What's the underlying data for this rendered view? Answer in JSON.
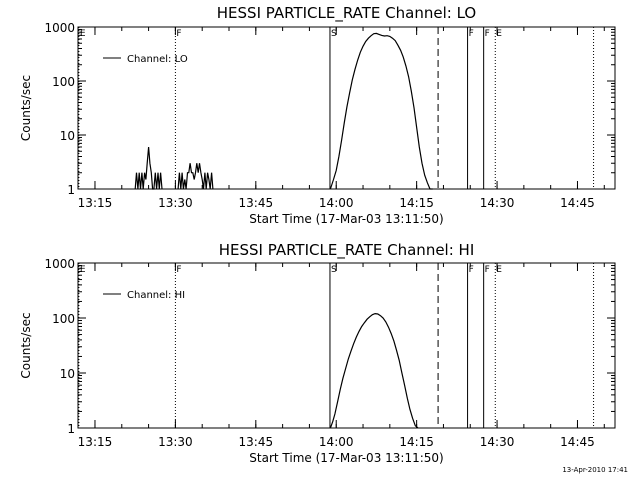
{
  "footer": {
    "timestamp": "13-Apr-2010 17:41"
  },
  "chart_data": [
    {
      "type": "line",
      "title": "HESSI PARTICLE_RATE Channel: LO",
      "xlabel": "Start Time (17-Mar-03 13:11:50)",
      "ylabel": "Counts/sec",
      "y_scale": "log",
      "ylim": [
        1,
        1000
      ],
      "xlim": [
        "13:11:50",
        "14:52:00"
      ],
      "xticks": [
        "13:15",
        "13:30",
        "13:45",
        "14:00",
        "14:15",
        "14:30",
        "14:45"
      ],
      "yticks": [
        "1",
        "10",
        "100",
        "1000"
      ],
      "legend": {
        "label": "Channel: LO",
        "placement": "top-left"
      },
      "markers": [
        {
          "time": "13:12:00",
          "label": "E",
          "style": "dotted"
        },
        {
          "time": "13:30:00",
          "label": "F",
          "style": "dotted"
        },
        {
          "time": "13:58:50",
          "label": "S",
          "style": "solid"
        },
        {
          "time": "14:19:00",
          "label": "",
          "style": "dashed"
        },
        {
          "time": "14:24:30",
          "label": "F",
          "style": "solid"
        },
        {
          "time": "14:27:30",
          "label": "F",
          "style": "solid"
        },
        {
          "time": "14:29:40",
          "label": "E",
          "style": "dotted"
        },
        {
          "time": "14:48:00",
          "label": "",
          "style": "dotted"
        }
      ],
      "series": [
        {
          "name": "Channel: LO",
          "segments": [
            {
              "x": [
                "13:22:30",
                "13:22:45",
                "13:23:00",
                "13:23:15",
                "13:23:30",
                "13:23:45",
                "13:24:00",
                "13:24:15",
                "13:24:30",
                "13:24:45",
                "13:25:00",
                "13:25:15",
                "13:25:30",
                "13:25:45",
                "13:26:00",
                "13:26:15",
                "13:26:30",
                "13:26:45",
                "13:27:00",
                "13:27:15",
                "13:27:30"
              ],
              "y": [
                1,
                2,
                1,
                2,
                1,
                2,
                1,
                2,
                1.5,
                3,
                6,
                3,
                2,
                1,
                1,
                2,
                1,
                2,
                1,
                2,
                1
              ]
            },
            {
              "x": [
                "13:30:30",
                "13:30:45",
                "13:31:00",
                "13:31:15",
                "13:31:30",
                "13:31:45",
                "13:32:00",
                "13:32:15",
                "13:32:30",
                "13:32:45",
                "13:33:00",
                "13:33:15",
                "13:33:30",
                "13:33:45",
                "13:34:00",
                "13:34:15",
                "13:34:30",
                "13:34:45",
                "13:35:00",
                "13:35:15",
                "13:35:30",
                "13:35:45",
                "13:36:00",
                "13:36:15",
                "13:36:30",
                "13:36:45",
                "13:37:00"
              ],
              "y": [
                1,
                2,
                1,
                2,
                1,
                1.5,
                1,
                2,
                2,
                3,
                2,
                2,
                1.5,
                2,
                3,
                2,
                3,
                2,
                1.5,
                1,
                2,
                1,
                2,
                1.5,
                1,
                2,
                1
              ]
            },
            {
              "x": [
                "13:58:55",
                "13:59:30",
                "14:00:00",
                "14:00:30",
                "14:01:00",
                "14:01:30",
                "14:02:00",
                "14:02:30",
                "14:03:00",
                "14:03:30",
                "14:04:00",
                "14:04:30",
                "14:05:00",
                "14:05:30",
                "14:06:00",
                "14:06:30",
                "14:07:00",
                "14:07:30",
                "14:08:00",
                "14:08:30",
                "14:09:00",
                "14:09:30",
                "14:10:00",
                "14:10:30",
                "14:11:00",
                "14:11:30",
                "14:12:00",
                "14:12:30",
                "14:13:00",
                "14:13:30",
                "14:14:00",
                "14:14:30",
                "14:15:00",
                "14:15:30",
                "14:16:00",
                "14:16:30",
                "14:17:00",
                "14:17:30",
                "14:18:00"
              ],
              "y": [
                1,
                1.5,
                2.2,
                4,
                8,
                17,
                33,
                60,
                105,
                165,
                245,
                340,
                440,
                540,
                620,
                690,
                750,
                760,
                730,
                700,
                680,
                690,
                670,
                620,
                560,
                460,
                370,
                280,
                190,
                120,
                65,
                32,
                14,
                6,
                3,
                1.8,
                1.3,
                1,
                1
              ]
            }
          ]
        }
      ]
    },
    {
      "type": "line",
      "title": "HESSI PARTICLE_RATE Channel: HI",
      "xlabel": "Start Time (17-Mar-03 13:11:50)",
      "ylabel": "Counts/sec",
      "y_scale": "log",
      "ylim": [
        1,
        1000
      ],
      "xlim": [
        "13:11:50",
        "14:52:00"
      ],
      "xticks": [
        "13:15",
        "13:30",
        "13:45",
        "14:00",
        "14:15",
        "14:30",
        "14:45"
      ],
      "yticks": [
        "1",
        "10",
        "100",
        "1000"
      ],
      "legend": {
        "label": "Channel: HI",
        "placement": "top-left"
      },
      "markers": [
        {
          "time": "13:12:00",
          "label": "E",
          "style": "dotted"
        },
        {
          "time": "13:30:00",
          "label": "F",
          "style": "dotted"
        },
        {
          "time": "13:58:50",
          "label": "S",
          "style": "solid"
        },
        {
          "time": "14:19:00",
          "label": "",
          "style": "dashed"
        },
        {
          "time": "14:24:30",
          "label": "F",
          "style": "solid"
        },
        {
          "time": "14:27:30",
          "label": "F",
          "style": "solid"
        },
        {
          "time": "14:29:40",
          "label": "E",
          "style": "dotted"
        },
        {
          "time": "14:48:00",
          "label": "",
          "style": "dotted"
        }
      ],
      "series": [
        {
          "name": "Channel: HI",
          "segments": [
            {
              "x": [
                "13:58:55",
                "13:59:20",
                "13:59:45",
                "14:00:15",
                "14:00:45",
                "14:01:15",
                "14:01:45",
                "14:02:15",
                "14:02:45",
                "14:03:15",
                "14:03:45",
                "14:04:15",
                "14:04:45",
                "14:05:15",
                "14:05:45",
                "14:06:15",
                "14:06:45",
                "14:07:15",
                "14:07:45",
                "14:08:15",
                "14:08:45",
                "14:09:15",
                "14:09:45",
                "14:10:15",
                "14:10:45",
                "14:11:15",
                "14:11:45",
                "14:12:15",
                "14:12:45",
                "14:13:15",
                "14:13:45",
                "14:14:15",
                "14:14:45",
                "14:15:15"
              ],
              "y": [
                1,
                1.3,
                1.8,
                3,
                5,
                8,
                12,
                18,
                25,
                34,
                45,
                57,
                70,
                82,
                95,
                105,
                115,
                120,
                118,
                110,
                100,
                85,
                68,
                52,
                38,
                26,
                17,
                10,
                6,
                3.5,
                2.2,
                1.5,
                1.1,
                1
              ]
            }
          ]
        }
      ]
    }
  ]
}
